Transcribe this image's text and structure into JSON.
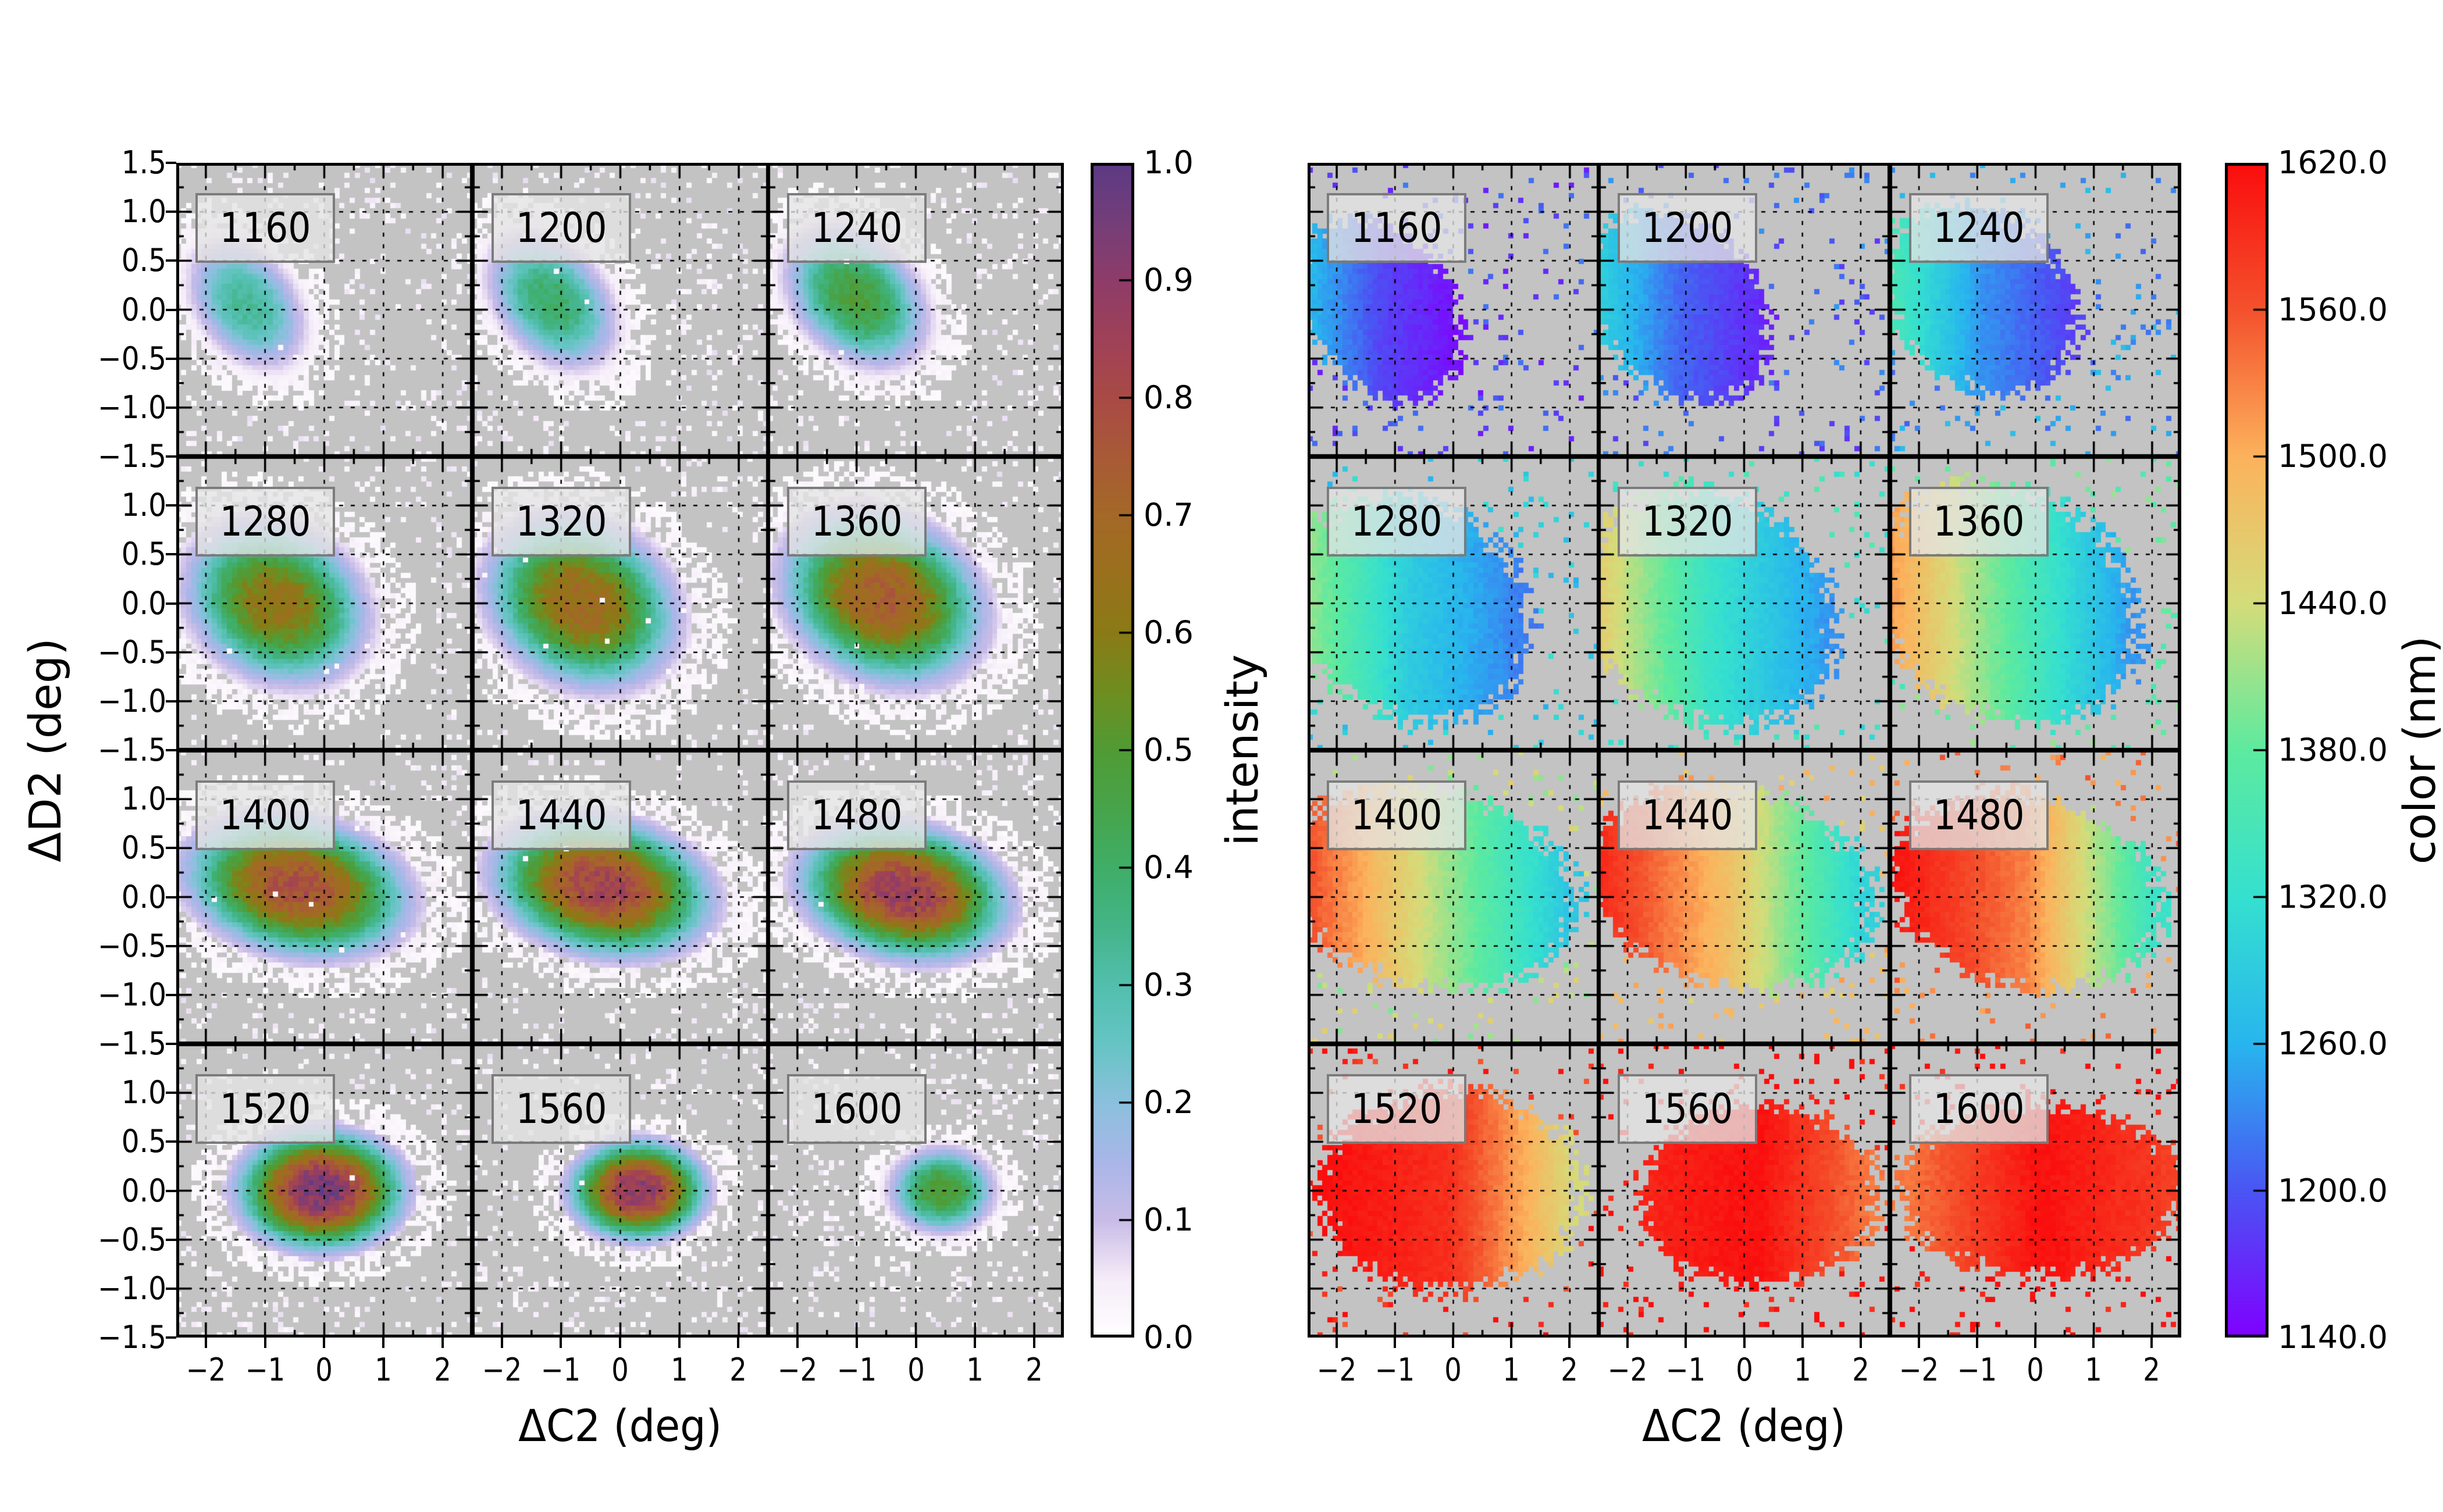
{
  "figure": {
    "background": "#ffffff",
    "plot_background": "#c3c3c3",
    "label_box_fill": "rgba(228,228,228,0.78)",
    "label_box_border": "#767676",
    "x_tick_labels": [
      "−2",
      "−1",
      "0",
      "1",
      "2"
    ],
    "y_tick_labels_first_row": [
      "1.5",
      "1.0",
      "0.5",
      "0.0",
      "−0.5",
      "−1.0",
      "−1.5"
    ],
    "y_tick_labels_other_rows": [
      "1.0",
      "0.5",
      "0.0",
      "−0.5",
      "−1.0",
      "−1.5"
    ]
  },
  "chart_data": [
    {
      "id": "intensity-panel",
      "type": "heatmap",
      "title": "",
      "xlabel": "ΔC2 (deg)",
      "ylabel": "ΔD2 (deg)",
      "x_range": [
        -2.5,
        2.5
      ],
      "y_range": [
        -1.5,
        1.5
      ],
      "x_ticks": [
        -2,
        -1,
        0,
        1,
        2
      ],
      "y_ticks": [
        1.5,
        1.0,
        0.5,
        0.0,
        -0.5,
        -1.0,
        -1.5
      ],
      "grid": "dotted, x every 1.0 deg, y every 0.5 deg",
      "layout": {
        "rows": 4,
        "cols": 3
      },
      "colorbar": {
        "label": "intensity",
        "min": 0.0,
        "max": 1.0,
        "tick_labels": [
          "1.0",
          "0.9",
          "0.8",
          "0.7",
          "0.6",
          "0.5",
          "0.4",
          "0.3",
          "0.2",
          "0.1",
          "0.0"
        ],
        "stops": [
          [
            0,
            "#ffffff"
          ],
          [
            0.05,
            "#f5ecf8"
          ],
          [
            0.1,
            "#c9bce7"
          ],
          [
            0.15,
            "#a9b6e8"
          ],
          [
            0.2,
            "#8bc0dd"
          ],
          [
            0.25,
            "#66c4c4"
          ],
          [
            0.3,
            "#52bfae"
          ],
          [
            0.35,
            "#44b488"
          ],
          [
            0.4,
            "#3fae68"
          ],
          [
            0.45,
            "#47a44b"
          ],
          [
            0.5,
            "#509b35"
          ],
          [
            0.55,
            "#6f8d20"
          ],
          [
            0.6,
            "#8a7a16"
          ],
          [
            0.65,
            "#9a701d"
          ],
          [
            0.7,
            "#a46827"
          ],
          [
            0.75,
            "#a85a37"
          ],
          [
            0.8,
            "#a94a45"
          ],
          [
            0.85,
            "#9f4158"
          ],
          [
            0.9,
            "#8e3c69"
          ],
          [
            0.95,
            "#743e78"
          ],
          [
            1,
            "#5c3a85"
          ]
        ]
      },
      "subplots": [
        {
          "label": "1160",
          "blob": {
            "cx": -1.3,
            "cy": 0.05,
            "rx": 1.25,
            "ry": 0.72,
            "rot": -20,
            "peak": 0.33
          }
        },
        {
          "label": "1200",
          "blob": {
            "cx": -1.15,
            "cy": 0.08,
            "rx": 1.35,
            "ry": 0.75,
            "rot": -18,
            "peak": 0.4
          }
        },
        {
          "label": "1240",
          "blob": {
            "cx": -1.0,
            "cy": 0.12,
            "rx": 1.45,
            "ry": 0.78,
            "rot": -15,
            "peak": 0.48
          }
        },
        {
          "label": "1280",
          "blob": {
            "cx": -0.8,
            "cy": 0.0,
            "rx": 1.8,
            "ry": 0.95,
            "rot": -8,
            "peak": 0.63
          }
        },
        {
          "label": "1320",
          "blob": {
            "cx": -0.65,
            "cy": 0.0,
            "rx": 1.9,
            "ry": 1.0,
            "rot": -8,
            "peak": 0.68
          }
        },
        {
          "label": "1360",
          "blob": {
            "cx": -0.55,
            "cy": 0.05,
            "rx": 2.0,
            "ry": 1.0,
            "rot": -8,
            "peak": 0.73
          }
        },
        {
          "label": "1400",
          "blob": {
            "cx": -0.45,
            "cy": 0.1,
            "rx": 2.2,
            "ry": 0.82,
            "rot": -5,
            "peak": 0.78
          }
        },
        {
          "label": "1440",
          "blob": {
            "cx": -0.3,
            "cy": 0.1,
            "rx": 2.15,
            "ry": 0.82,
            "rot": -5,
            "peak": 0.83
          }
        },
        {
          "label": "1480",
          "blob": {
            "cx": -0.2,
            "cy": 0.05,
            "rx": 2.05,
            "ry": 0.8,
            "rot": -5,
            "peak": 0.86
          }
        },
        {
          "label": "1520",
          "blob": {
            "cx": -0.05,
            "cy": 0.0,
            "rx": 1.65,
            "ry": 0.72,
            "rot": 0,
            "peak": 0.94
          }
        },
        {
          "label": "1560",
          "blob": {
            "cx": 0.3,
            "cy": 0.0,
            "rx": 1.35,
            "ry": 0.6,
            "rot": 0,
            "peak": 0.9
          }
        },
        {
          "label": "1600",
          "blob": {
            "cx": 0.45,
            "cy": 0.0,
            "rx": 1.05,
            "ry": 0.52,
            "rot": 0,
            "peak": 0.5
          }
        }
      ]
    },
    {
      "id": "color-panel",
      "type": "heatmap",
      "title": "",
      "xlabel": "ΔC2 (deg)",
      "ylabel": "",
      "x_range": [
        -2.5,
        2.5
      ],
      "y_range": [
        -1.5,
        1.5
      ],
      "x_ticks": [
        -2,
        -1,
        0,
        1,
        2
      ],
      "y_ticks": [
        1.5,
        1.0,
        0.5,
        0.0,
        -0.5,
        -1.0,
        -1.5
      ],
      "grid": "dotted, x every 1.0 deg, y every 0.5 deg",
      "layout": {
        "rows": 4,
        "cols": 3
      },
      "colorbar": {
        "label": "color (nm)",
        "min": 1140.0,
        "max": 1620.0,
        "tick_labels": [
          "1620.0",
          "1560.0",
          "1500.0",
          "1440.0",
          "1380.0",
          "1320.0",
          "1260.0",
          "1200.0",
          "1140.0"
        ],
        "stops": [
          [
            0,
            "#8000ff"
          ],
          [
            0.125,
            "#4a55f3"
          ],
          [
            0.25,
            "#28b5ee"
          ],
          [
            0.375,
            "#35e0cf"
          ],
          [
            0.5,
            "#5dea9f"
          ],
          [
            0.625,
            "#d4dc7a"
          ],
          [
            0.75,
            "#fcb25c"
          ],
          [
            0.875,
            "#f4512c"
          ],
          [
            1,
            "#fa0d0d"
          ]
        ]
      },
      "subplots": [
        {
          "label": "1160",
          "blob": {
            "cx": -1.25,
            "cy": 0.0,
            "rx": 1.35,
            "ry": 0.8,
            "rot": -18
          },
          "wl": {
            "left": 1275,
            "center": 1190,
            "right": 1150
          }
        },
        {
          "label": "1200",
          "blob": {
            "cx": -1.1,
            "cy": 0.05,
            "rx": 1.5,
            "ry": 0.85,
            "rot": -15
          },
          "wl": {
            "left": 1305,
            "center": 1210,
            "right": 1165
          }
        },
        {
          "label": "1240",
          "blob": {
            "cx": -0.95,
            "cy": 0.1,
            "rx": 1.6,
            "ry": 0.85,
            "rot": -12
          },
          "wl": {
            "left": 1360,
            "center": 1240,
            "right": 1185
          }
        },
        {
          "label": "1280",
          "blob": {
            "cx": -0.75,
            "cy": -0.05,
            "rx": 1.95,
            "ry": 1.05,
            "rot": -8
          },
          "wl": {
            "left": 1425,
            "center": 1290,
            "right": 1225
          }
        },
        {
          "label": "1320",
          "blob": {
            "cx": -0.6,
            "cy": -0.05,
            "rx": 2.05,
            "ry": 1.1,
            "rot": -8
          },
          "wl": {
            "left": 1475,
            "center": 1330,
            "right": 1240
          }
        },
        {
          "label": "1360",
          "blob": {
            "cx": -0.5,
            "cy": 0.0,
            "rx": 2.15,
            "ry": 1.1,
            "rot": -8
          },
          "wl": {
            "left": 1525,
            "center": 1380,
            "right": 1240
          }
        },
        {
          "label": "1400",
          "blob": {
            "cx": -0.4,
            "cy": 0.1,
            "rx": 2.35,
            "ry": 0.95,
            "rot": -5
          },
          "wl": {
            "left": 1580,
            "center": 1430,
            "right": 1285
          }
        },
        {
          "label": "1440",
          "blob": {
            "cx": -0.25,
            "cy": 0.1,
            "rx": 2.3,
            "ry": 0.95,
            "rot": -5
          },
          "wl": {
            "left": 1600,
            "center": 1480,
            "right": 1300
          }
        },
        {
          "label": "1480",
          "blob": {
            "cx": -0.15,
            "cy": 0.05,
            "rx": 2.2,
            "ry": 0.9,
            "rot": -5
          },
          "wl": {
            "left": 1612,
            "center": 1530,
            "right": 1330
          }
        },
        {
          "label": "1520",
          "blob": {
            "cx": -0.05,
            "cy": 0.0,
            "rx": 2.1,
            "ry": 0.95,
            "rot": 0
          },
          "wl": {
            "left": 1618,
            "center": 1590,
            "right": 1445
          }
        },
        {
          "label": "1560",
          "blob": {
            "cx": 0.25,
            "cy": -0.05,
            "rx": 1.9,
            "ry": 0.85,
            "rot": 0
          },
          "wl": {
            "left": 1600,
            "center": 1618,
            "right": 1535
          }
        },
        {
          "label": "1600",
          "blob": {
            "cx": 0.1,
            "cy": 0.0,
            "rx": 2.3,
            "ry": 0.8,
            "rot": 0
          },
          "wl": {
            "left": 1535,
            "center": 1618,
            "right": 1575
          }
        }
      ]
    }
  ]
}
